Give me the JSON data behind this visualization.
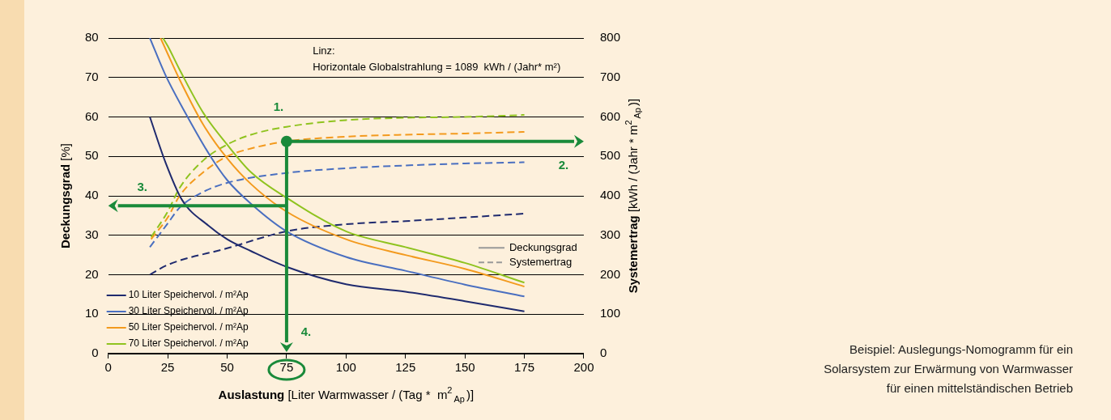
{
  "chart_data": {
    "type": "line",
    "xlabel": "Auslastung [Liter Warmwasser / (Tag *  m$^{2}$$_{Ap}$)]",
    "ylabel": "Deckungsgrad [%]",
    "y2label": "Systemertrag [kWh / (Jahr * m$^{2}$$_{Ap}$)]",
    "xlim": [
      0,
      200
    ],
    "xticks": [
      0,
      25,
      50,
      75,
      100,
      125,
      150,
      175,
      200
    ],
    "ylim": [
      0,
      80
    ],
    "yticks": [
      0,
      10,
      20,
      30,
      40,
      50,
      60,
      70,
      80
    ],
    "y2lim": [
      0,
      800
    ],
    "y2ticks": [
      0,
      100,
      200,
      300,
      400,
      500,
      600,
      700,
      800
    ],
    "grid": "y",
    "legend": "bottom left",
    "marker": "none",
    "series": [
      {
        "name": "10 Liter Speichervol. / m²Ap",
        "color": "#1f2a6e",
        "line_style": "solid",
        "x": [
          17.5,
          24,
          31,
          42,
          50,
          60,
          75,
          100,
          125,
          150,
          175
        ],
        "values": [
          60,
          48.6,
          39,
          32.5,
          29,
          26,
          22,
          17.6,
          15.7,
          13.3,
          10.7
        ]
      },
      {
        "name": "30 Liter Speichervol. / m²Ap",
        "color": "#4a6fc0",
        "line_style": "solid",
        "x": [
          17.5,
          24,
          32,
          43,
          50,
          60,
          75,
          100,
          125,
          150,
          175
        ],
        "values": [
          80,
          70.7,
          61.5,
          50,
          44,
          38,
          31,
          24.5,
          21,
          17.5,
          14.5
        ]
      },
      {
        "name": "50 Liter Speichervol. / m²Ap",
        "color": "#f39a1e",
        "line_style": "solid",
        "x": [
          22,
          25,
          30,
          40,
          50,
          60,
          75,
          100,
          125,
          150,
          175
        ],
        "values": [
          80,
          76,
          69.5,
          58,
          49.5,
          43,
          36,
          29,
          25,
          21.5,
          17
        ]
      },
      {
        "name": "70 Liter Speichervol. / m²Ap",
        "color": "#8fc31f",
        "line_style": "solid",
        "x": [
          23,
          25,
          30,
          40,
          50,
          60,
          75,
          100,
          125,
          150,
          175
        ],
        "values": [
          80,
          78,
          72,
          61,
          53,
          46,
          39.5,
          31,
          27,
          23,
          18
        ]
      },
      {
        "color": "#1f2a6e",
        "line_style": "dashed",
        "axis": "y2",
        "x": [
          17.5,
          25,
          50,
          75,
          100,
          125,
          150,
          175
        ],
        "values": [
          200,
          225,
          267,
          310,
          328,
          336,
          345,
          355
        ]
      },
      {
        "color": "#4a6fc0",
        "line_style": "dashed",
        "axis": "y2",
        "x": [
          17.5,
          25,
          30,
          40,
          50,
          75,
          100,
          125,
          150,
          175
        ],
        "values": [
          270,
          330,
          370,
          410,
          433,
          458,
          470,
          477,
          482,
          485
        ]
      },
      {
        "color": "#f39a1e",
        "line_style": "dashed",
        "axis": "y2",
        "x": [
          18,
          25,
          30,
          40,
          50,
          60,
          75,
          100,
          125,
          150,
          175
        ],
        "values": [
          290,
          345,
          400,
          460,
          500,
          520,
          538,
          550,
          555,
          558,
          562
        ]
      },
      {
        "color": "#8fc31f",
        "line_style": "dashed",
        "axis": "y2",
        "x": [
          18,
          25,
          30,
          40,
          50,
          60,
          75,
          100,
          125,
          150,
          175
        ],
        "values": [
          295,
          360,
          420,
          490,
          530,
          555,
          575,
          592,
          598,
          600,
          605
        ]
      }
    ],
    "ref_lines": [
      {
        "axis": "x",
        "value": 75,
        "color": "#1a8a3a"
      },
      {
        "axis": "y2",
        "value": 538,
        "color": "#1a8a3a"
      },
      {
        "axis": "y",
        "value": 37.5,
        "color": "#1a8a3a"
      }
    ],
    "annotations": [
      "Linz:",
      "Horizontale Globalstrahlung = 1089  kWh / (Jahr* m²)",
      "Deckungsgrad",
      "Systemertrag",
      "1.",
      "2.",
      "3.",
      "4.",
      "Beispiel: Auslegungs-Nomogramm für ein",
      "Solarsystem zur Erwärmung von Warmwasser",
      "für einen mittelständischen Betrieb"
    ]
  }
}
